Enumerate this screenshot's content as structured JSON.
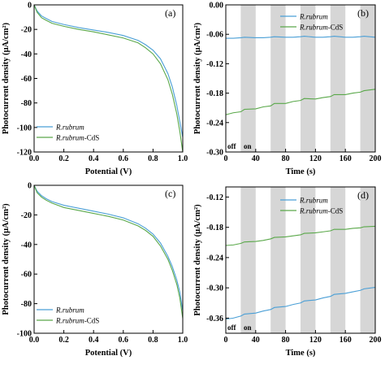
{
  "colors": {
    "rubrum": "#4a9fd6",
    "rubrum_cds": "#5aa84a",
    "off_band": "#d6d6d6",
    "frame": "#000000"
  },
  "chart_data": [
    {
      "id": "a",
      "type": "line",
      "panel_label": "(a)",
      "xlabel": "Potential (V)",
      "ylabel": "Photocurrent density (μA/cm²)",
      "xlim": [
        0.0,
        1.0
      ],
      "ylim": [
        -120,
        0
      ],
      "xticks": [
        0.0,
        0.2,
        0.4,
        0.6,
        0.8,
        1.0
      ],
      "xtick_labels": [
        "0.0",
        "0.2",
        "0.4",
        "0.6",
        "0.8",
        "1.0"
      ],
      "yticks": [
        0,
        -20,
        -40,
        -60,
        -80,
        -100,
        -120
      ],
      "ytick_labels": [
        "0",
        "-20",
        "-40",
        "-60",
        "-80",
        "-100",
        "-120"
      ],
      "legend_position": "bottom-left",
      "bands": [],
      "band_labels": [],
      "series": [
        {
          "name": "R.rubrum",
          "name_italic": "R.rubrum",
          "name_suffix": "",
          "color_key": "rubrum",
          "x": [
            0.0,
            0.02,
            0.05,
            0.08,
            0.12,
            0.2,
            0.3,
            0.4,
            0.5,
            0.6,
            0.7,
            0.75,
            0.8,
            0.85,
            0.9,
            0.93,
            0.96,
            0.98,
            1.0
          ],
          "y": [
            0,
            -5,
            -9,
            -11,
            -13.5,
            -16,
            -18.5,
            -20.5,
            -22.5,
            -25,
            -29,
            -32.5,
            -37,
            -44,
            -56,
            -67,
            -82,
            -95,
            -108
          ]
        },
        {
          "name": "R.rubrum-CdS",
          "name_italic": "R.rubrum",
          "name_suffix": "-CdS",
          "color_key": "rubrum_cds",
          "x": [
            0.0,
            0.02,
            0.05,
            0.08,
            0.12,
            0.2,
            0.3,
            0.4,
            0.5,
            0.6,
            0.7,
            0.75,
            0.8,
            0.85,
            0.9,
            0.93,
            0.96,
            0.98,
            1.0
          ],
          "y": [
            0,
            -6,
            -10.5,
            -12.5,
            -15,
            -17.5,
            -20,
            -22,
            -24.5,
            -27,
            -31,
            -35,
            -40,
            -48,
            -61,
            -73,
            -89,
            -103,
            -120
          ]
        }
      ]
    },
    {
      "id": "b",
      "type": "line",
      "panel_label": "(b)",
      "xlabel": "Time (s)",
      "ylabel": "Photocurrent density (μA/cm²)",
      "xlim": [
        0,
        200
      ],
      "ylim": [
        -0.3,
        0.0
      ],
      "xticks": [
        0,
        40,
        80,
        120,
        160,
        200
      ],
      "xtick_labels": [
        "0",
        "40",
        "80",
        "120",
        "160",
        "200"
      ],
      "yticks": [
        0.0,
        -0.06,
        -0.12,
        -0.18,
        -0.24,
        -0.3
      ],
      "ytick_labels": [
        "0.00",
        "-0.06",
        "-0.12",
        "-0.18",
        "-0.24",
        "-0.30"
      ],
      "legend_position": "top-center",
      "bands": [
        [
          20,
          40
        ],
        [
          60,
          80
        ],
        [
          100,
          120
        ],
        [
          140,
          160
        ],
        [
          180,
          200
        ]
      ],
      "band_labels": [
        "off",
        "on"
      ],
      "series": [
        {
          "name": "R.rubrum",
          "name_italic": "R.rubrum",
          "name_suffix": "",
          "color_key": "rubrum",
          "x": [
            0,
            10,
            20,
            25,
            40,
            50,
            60,
            65,
            80,
            90,
            100,
            105,
            120,
            130,
            140,
            145,
            160,
            170,
            180,
            185,
            200
          ],
          "y": [
            -0.068,
            -0.068,
            -0.067,
            -0.066,
            -0.067,
            -0.067,
            -0.066,
            -0.065,
            -0.066,
            -0.066,
            -0.065,
            -0.064,
            -0.066,
            -0.066,
            -0.065,
            -0.064,
            -0.066,
            -0.066,
            -0.065,
            -0.064,
            -0.066
          ]
        },
        {
          "name": "R.rubrum-CdS",
          "name_italic": "R.rubrum",
          "name_suffix": "-CdS",
          "color_key": "rubrum_cds",
          "x": [
            0,
            10,
            20,
            25,
            40,
            50,
            60,
            65,
            80,
            90,
            100,
            105,
            120,
            130,
            140,
            145,
            160,
            170,
            180,
            185,
            200
          ],
          "y": [
            -0.224,
            -0.22,
            -0.218,
            -0.213,
            -0.212,
            -0.208,
            -0.206,
            -0.201,
            -0.201,
            -0.197,
            -0.195,
            -0.191,
            -0.192,
            -0.189,
            -0.187,
            -0.183,
            -0.183,
            -0.18,
            -0.178,
            -0.175,
            -0.172
          ]
        }
      ]
    },
    {
      "id": "c",
      "type": "line",
      "panel_label": "(c)",
      "xlabel": "Potential (V)",
      "ylabel": "Photocurrent density (μA/cm²)",
      "xlim": [
        0.0,
        1.0
      ],
      "ylim": [
        -100,
        0
      ],
      "xticks": [
        0.0,
        0.2,
        0.4,
        0.6,
        0.8,
        1.0
      ],
      "xtick_labels": [
        "0.0",
        "0.2",
        "0.4",
        "0.6",
        "0.8",
        "1.0"
      ],
      "yticks": [
        0,
        -20,
        -40,
        -60,
        -80,
        -100
      ],
      "ytick_labels": [
        "0",
        "-20",
        "-40",
        "-60",
        "-80",
        "-100"
      ],
      "legend_position": "bottom-left",
      "bands": [],
      "band_labels": [],
      "series": [
        {
          "name": "R.rubrum",
          "name_italic": "R.rubrum",
          "name_suffix": "",
          "color_key": "rubrum",
          "x": [
            0.0,
            0.02,
            0.05,
            0.08,
            0.12,
            0.2,
            0.3,
            0.4,
            0.5,
            0.6,
            0.7,
            0.75,
            0.8,
            0.85,
            0.9,
            0.93,
            0.96,
            0.98,
            1.0
          ],
          "y": [
            0,
            -4,
            -7,
            -9,
            -11,
            -13.5,
            -15.5,
            -17.5,
            -19.5,
            -22,
            -26,
            -29,
            -33,
            -39,
            -48,
            -55,
            -64,
            -72,
            -85
          ]
        },
        {
          "name": "R.rubrum-CdS",
          "name_italic": "R.rubrum",
          "name_suffix": "-CdS",
          "color_key": "rubrum_cds",
          "x": [
            0.0,
            0.02,
            0.05,
            0.08,
            0.12,
            0.2,
            0.3,
            0.4,
            0.5,
            0.6,
            0.7,
            0.75,
            0.8,
            0.85,
            0.9,
            0.93,
            0.96,
            0.98,
            1.0
          ],
          "y": [
            0,
            -5,
            -8,
            -10,
            -12,
            -15,
            -17,
            -19,
            -21,
            -23.5,
            -27.5,
            -30.5,
            -34.5,
            -41,
            -50,
            -57.5,
            -67,
            -76,
            -90
          ]
        }
      ]
    },
    {
      "id": "d",
      "type": "line",
      "panel_label": "(d)",
      "xlabel": "Time (s)",
      "ylabel": "Photocurrent density (μA/cm²)",
      "xlim": [
        0,
        200
      ],
      "ylim": [
        -0.39,
        -0.1
      ],
      "xticks": [
        0,
        40,
        80,
        120,
        160,
        200
      ],
      "xtick_labels": [
        "0",
        "40",
        "80",
        "120",
        "160",
        "200"
      ],
      "yticks": [
        -0.12,
        -0.18,
        -0.24,
        -0.3,
        -0.36
      ],
      "ytick_labels": [
        "-0.12",
        "-0.18",
        "-0.24",
        "-0.30",
        "-0.36"
      ],
      "legend_position": "top-center",
      "bands": [
        [
          20,
          40
        ],
        [
          60,
          80
        ],
        [
          100,
          120
        ],
        [
          140,
          160
        ],
        [
          180,
          200
        ]
      ],
      "band_labels": [
        "off",
        "on"
      ],
      "series": [
        {
          "name": "R.rubrum",
          "name_italic": "R.rubrum",
          "name_suffix": "",
          "color_key": "rubrum",
          "x": [
            0,
            10,
            20,
            25,
            40,
            50,
            60,
            65,
            80,
            90,
            100,
            105,
            120,
            130,
            140,
            145,
            160,
            170,
            180,
            185,
            200
          ],
          "y": [
            -0.362,
            -0.36,
            -0.356,
            -0.352,
            -0.35,
            -0.346,
            -0.343,
            -0.339,
            -0.337,
            -0.333,
            -0.33,
            -0.326,
            -0.324,
            -0.32,
            -0.317,
            -0.313,
            -0.311,
            -0.308,
            -0.305,
            -0.302,
            -0.299
          ]
        },
        {
          "name": "R.rubrum-CdS",
          "name_italic": "R.rubrum",
          "name_suffix": "-CdS",
          "color_key": "rubrum_cds",
          "x": [
            0,
            10,
            20,
            25,
            40,
            50,
            60,
            65,
            80,
            90,
            100,
            105,
            120,
            130,
            140,
            145,
            160,
            170,
            180,
            185,
            200
          ],
          "y": [
            -0.216,
            -0.215,
            -0.212,
            -0.209,
            -0.208,
            -0.206,
            -0.203,
            -0.2,
            -0.199,
            -0.197,
            -0.195,
            -0.192,
            -0.191,
            -0.189,
            -0.187,
            -0.184,
            -0.184,
            -0.182,
            -0.181,
            -0.179,
            -0.178
          ]
        }
      ]
    }
  ]
}
